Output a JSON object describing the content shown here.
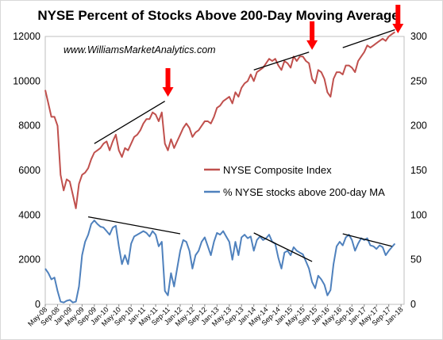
{
  "chart_data": {
    "type": "line",
    "title": "NYSE Percent of Stocks Above 200-Day Moving Average",
    "watermark": "www.WilliamsMarketAnalytics.com",
    "y_left": {
      "ticks": [
        "0",
        "2000",
        "4000",
        "6000",
        "8000",
        "10000",
        "12000"
      ],
      "range": [
        0,
        12000
      ]
    },
    "y_right": {
      "ticks": [
        "0",
        "50",
        "100",
        "150",
        "200",
        "250",
        "300"
      ],
      "range": [
        0,
        300
      ]
    },
    "x_ticks": [
      "May-08",
      "Sep-08",
      "Jan-09",
      "May-09",
      "Sep-09",
      "Jan-10",
      "May-10",
      "Sep-10",
      "Jan-11",
      "May-11",
      "Sep-11",
      "Jan-12",
      "May-12",
      "Sep-12",
      "Jan-13",
      "May-13",
      "Sep-13",
      "Jan-14",
      "May-14",
      "Sep-14",
      "Jan-15",
      "May-15",
      "Sep-15",
      "Jan-16",
      "May-16",
      "Sep-16",
      "Jan-17",
      "May-17",
      "Sep-17",
      "Jan-18"
    ],
    "legend_position": "center-right",
    "series": [
      {
        "name": "NYSE Composite Index",
        "axis": "left",
        "color": "#c0504d",
        "points": [
          [
            "May-08",
            9600
          ],
          [
            "Jun-08",
            9000
          ],
          [
            "Jul-08",
            8400
          ],
          [
            "Aug-08",
            8400
          ],
          [
            "Sep-08",
            8000
          ],
          [
            "Oct-08",
            5800
          ],
          [
            "Nov-08",
            5100
          ],
          [
            "Dec-08",
            5600
          ],
          [
            "Jan-09",
            5500
          ],
          [
            "Feb-09",
            4900
          ],
          [
            "Mar-09",
            4300
          ],
          [
            "Apr-09",
            5400
          ],
          [
            "May-09",
            5800
          ],
          [
            "Jun-09",
            5900
          ],
          [
            "Jul-09",
            6100
          ],
          [
            "Aug-09",
            6500
          ],
          [
            "Sep-09",
            6800
          ],
          [
            "Oct-09",
            6900
          ],
          [
            "Nov-09",
            7000
          ],
          [
            "Dec-09",
            7200
          ],
          [
            "Jan-10",
            7300
          ],
          [
            "Feb-10",
            6900
          ],
          [
            "Mar-10",
            7300
          ],
          [
            "Apr-10",
            7600
          ],
          [
            "May-10",
            6900
          ],
          [
            "Jun-10",
            6600
          ],
          [
            "Jul-10",
            7000
          ],
          [
            "Aug-10",
            6900
          ],
          [
            "Sep-10",
            7200
          ],
          [
            "Oct-10",
            7500
          ],
          [
            "Nov-10",
            7600
          ],
          [
            "Dec-10",
            7800
          ],
          [
            "Jan-11",
            8100
          ],
          [
            "Feb-11",
            8300
          ],
          [
            "Mar-11",
            8300
          ],
          [
            "Apr-11",
            8600
          ],
          [
            "May-11",
            8500
          ],
          [
            "Jun-11",
            8200
          ],
          [
            "Jul-11",
            8600
          ],
          [
            "Aug-11",
            7200
          ],
          [
            "Sep-11",
            6900
          ],
          [
            "Oct-11",
            7400
          ],
          [
            "Nov-11",
            7000
          ],
          [
            "Dec-11",
            7300
          ],
          [
            "Jan-12",
            7600
          ],
          [
            "Feb-12",
            7900
          ],
          [
            "Mar-12",
            8100
          ],
          [
            "Apr-12",
            7900
          ],
          [
            "May-12",
            7500
          ],
          [
            "Jun-12",
            7700
          ],
          [
            "Jul-12",
            7800
          ],
          [
            "Aug-12",
            8000
          ],
          [
            "Sep-12",
            8200
          ],
          [
            "Oct-12",
            8200
          ],
          [
            "Nov-12",
            8100
          ],
          [
            "Dec-12",
            8400
          ],
          [
            "Jan-13",
            8800
          ],
          [
            "Feb-13",
            8900
          ],
          [
            "Mar-13",
            9100
          ],
          [
            "Apr-13",
            9200
          ],
          [
            "May-13",
            9300
          ],
          [
            "Jun-13",
            9000
          ],
          [
            "Jul-13",
            9500
          ],
          [
            "Aug-13",
            9300
          ],
          [
            "Sep-13",
            9700
          ],
          [
            "Oct-13",
            9900
          ],
          [
            "Nov-13",
            10000
          ],
          [
            "Dec-13",
            10300
          ],
          [
            "Jan-14",
            10000
          ],
          [
            "Feb-14",
            10400
          ],
          [
            "Mar-14",
            10500
          ],
          [
            "Apr-14",
            10600
          ],
          [
            "May-14",
            10800
          ],
          [
            "Jun-14",
            11000
          ],
          [
            "Jul-14",
            10900
          ],
          [
            "Aug-14",
            11000
          ],
          [
            "Sep-14",
            10700
          ],
          [
            "Oct-14",
            10500
          ],
          [
            "Nov-14",
            10900
          ],
          [
            "Dec-14",
            10800
          ],
          [
            "Jan-15",
            10600
          ],
          [
            "Feb-15",
            11100
          ],
          [
            "Mar-15",
            10900
          ],
          [
            "Apr-15",
            11100
          ],
          [
            "May-15",
            11100
          ],
          [
            "Jun-15",
            10900
          ],
          [
            "Jul-15",
            10800
          ],
          [
            "Aug-15",
            10100
          ],
          [
            "Sep-15",
            9900
          ],
          [
            "Oct-15",
            10500
          ],
          [
            "Nov-15",
            10400
          ],
          [
            "Dec-15",
            10100
          ],
          [
            "Jan-16",
            9500
          ],
          [
            "Feb-16",
            9300
          ],
          [
            "Mar-16",
            10100
          ],
          [
            "Apr-16",
            10400
          ],
          [
            "May-16",
            10400
          ],
          [
            "Jun-16",
            10300
          ],
          [
            "Jul-16",
            10700
          ],
          [
            "Aug-16",
            10700
          ],
          [
            "Sep-16",
            10600
          ],
          [
            "Oct-16",
            10400
          ],
          [
            "Nov-16",
            10900
          ],
          [
            "Dec-16",
            11100
          ],
          [
            "Jan-17",
            11300
          ],
          [
            "Feb-17",
            11600
          ],
          [
            "Mar-17",
            11500
          ],
          [
            "Apr-17",
            11600
          ],
          [
            "May-17",
            11700
          ],
          [
            "Jun-17",
            11800
          ],
          [
            "Jul-17",
            11900
          ],
          [
            "Aug-17",
            11800
          ],
          [
            "Sep-17",
            12000
          ],
          [
            "Oct-17",
            12100
          ],
          [
            "Nov-17",
            12200
          ]
        ]
      },
      {
        "name": "% NYSE stocks above 200-day MA",
        "axis": "right",
        "color": "#4f81bd",
        "points": [
          [
            "May-08",
            40
          ],
          [
            "Jun-08",
            35
          ],
          [
            "Jul-08",
            28
          ],
          [
            "Aug-08",
            30
          ],
          [
            "Sep-08",
            15
          ],
          [
            "Oct-08",
            3
          ],
          [
            "Nov-08",
            2
          ],
          [
            "Dec-08",
            4
          ],
          [
            "Jan-09",
            5
          ],
          [
            "Feb-09",
            2
          ],
          [
            "Mar-09",
            3
          ],
          [
            "Apr-09",
            20
          ],
          [
            "May-09",
            55
          ],
          [
            "Jun-09",
            70
          ],
          [
            "Jul-09",
            78
          ],
          [
            "Aug-09",
            90
          ],
          [
            "Sep-09",
            94
          ],
          [
            "Oct-09",
            90
          ],
          [
            "Nov-09",
            87
          ],
          [
            "Dec-09",
            86
          ],
          [
            "Jan-10",
            82
          ],
          [
            "Feb-10",
            78
          ],
          [
            "Mar-10",
            86
          ],
          [
            "Apr-10",
            88
          ],
          [
            "May-10",
            65
          ],
          [
            "Jun-10",
            45
          ],
          [
            "Jul-10",
            55
          ],
          [
            "Aug-10",
            45
          ],
          [
            "Sep-10",
            68
          ],
          [
            "Oct-10",
            76
          ],
          [
            "Nov-10",
            78
          ],
          [
            "Dec-10",
            80
          ],
          [
            "Jan-11",
            82
          ],
          [
            "Feb-11",
            80
          ],
          [
            "Mar-11",
            76
          ],
          [
            "Apr-11",
            82
          ],
          [
            "May-11",
            78
          ],
          [
            "Jun-11",
            65
          ],
          [
            "Jul-11",
            70
          ],
          [
            "Aug-11",
            15
          ],
          [
            "Sep-11",
            10
          ],
          [
            "Oct-11",
            35
          ],
          [
            "Nov-11",
            20
          ],
          [
            "Dec-11",
            40
          ],
          [
            "Jan-12",
            60
          ],
          [
            "Feb-12",
            72
          ],
          [
            "Mar-12",
            70
          ],
          [
            "Apr-12",
            60
          ],
          [
            "May-12",
            40
          ],
          [
            "Jun-12",
            55
          ],
          [
            "Jul-12",
            60
          ],
          [
            "Aug-12",
            70
          ],
          [
            "Sep-12",
            75
          ],
          [
            "Oct-12",
            65
          ],
          [
            "Nov-12",
            55
          ],
          [
            "Dec-12",
            70
          ],
          [
            "Jan-13",
            80
          ],
          [
            "Feb-13",
            78
          ],
          [
            "Mar-13",
            82
          ],
          [
            "Apr-13",
            76
          ],
          [
            "May-13",
            70
          ],
          [
            "Jun-13",
            50
          ],
          [
            "Jul-13",
            70
          ],
          [
            "Aug-13",
            55
          ],
          [
            "Sep-13",
            75
          ],
          [
            "Oct-13",
            78
          ],
          [
            "Nov-13",
            74
          ],
          [
            "Dec-13",
            76
          ],
          [
            "Jan-14",
            60
          ],
          [
            "Feb-14",
            72
          ],
          [
            "Mar-14",
            76
          ],
          [
            "Apr-14",
            72
          ],
          [
            "May-14",
            74
          ],
          [
            "Jun-14",
            78
          ],
          [
            "Jul-14",
            70
          ],
          [
            "Aug-14",
            68
          ],
          [
            "Sep-14",
            52
          ],
          [
            "Oct-14",
            40
          ],
          [
            "Nov-14",
            58
          ],
          [
            "Dec-14",
            60
          ],
          [
            "Jan-15",
            55
          ],
          [
            "Feb-15",
            64
          ],
          [
            "Mar-15",
            60
          ],
          [
            "Apr-15",
            58
          ],
          [
            "May-15",
            56
          ],
          [
            "Jun-15",
            48
          ],
          [
            "Jul-15",
            40
          ],
          [
            "Aug-15",
            25
          ],
          [
            "Sep-15",
            18
          ],
          [
            "Oct-15",
            32
          ],
          [
            "Nov-15",
            28
          ],
          [
            "Dec-15",
            22
          ],
          [
            "Jan-16",
            10
          ],
          [
            "Feb-16",
            16
          ],
          [
            "Mar-16",
            45
          ],
          [
            "Apr-16",
            65
          ],
          [
            "May-16",
            70
          ],
          [
            "Jun-16",
            66
          ],
          [
            "Jul-16",
            75
          ],
          [
            "Aug-16",
            78
          ],
          [
            "Sep-16",
            72
          ],
          [
            "Oct-16",
            60
          ],
          [
            "Nov-16",
            68
          ],
          [
            "Dec-16",
            74
          ],
          [
            "Jan-17",
            72
          ],
          [
            "Feb-17",
            74
          ],
          [
            "Mar-17",
            66
          ],
          [
            "Apr-17",
            65
          ],
          [
            "May-17",
            62
          ],
          [
            "Jun-17",
            66
          ],
          [
            "Jul-17",
            64
          ],
          [
            "Aug-17",
            55
          ],
          [
            "Sep-17",
            60
          ],
          [
            "Oct-17",
            64
          ],
          [
            "Nov-17",
            68
          ]
        ]
      }
    ],
    "trend_lines": [
      {
        "axis": "left",
        "from": [
          "Sep-09",
          7200
        ],
        "to": [
          "Aug-11",
          9100
        ]
      },
      {
        "axis": "left",
        "from": [
          "Jan-14",
          10500
        ],
        "to": [
          "Jul-15",
          11300
        ]
      },
      {
        "axis": "left",
        "from": [
          "Jun-16",
          11500
        ],
        "to": [
          "Nov-17",
          12300
        ]
      },
      {
        "axis": "right",
        "from": [
          "Jul-09",
          98
        ],
        "to": [
          "Jan-12",
          79
        ]
      },
      {
        "axis": "right",
        "from": [
          "Jan-14",
          80
        ],
        "to": [
          "Aug-15",
          48
        ]
      },
      {
        "axis": "right",
        "from": [
          "Jun-16",
          79
        ],
        "to": [
          "Oct-17",
          65
        ]
      }
    ],
    "arrows": [
      {
        "at": [
          "Sep-11",
          9300
        ],
        "axis": "left"
      },
      {
        "at": [
          "Aug-15",
          11400
        ],
        "axis": "left"
      },
      {
        "at": [
          "Dec-17",
          12250
        ],
        "axis": "left"
      }
    ]
  }
}
